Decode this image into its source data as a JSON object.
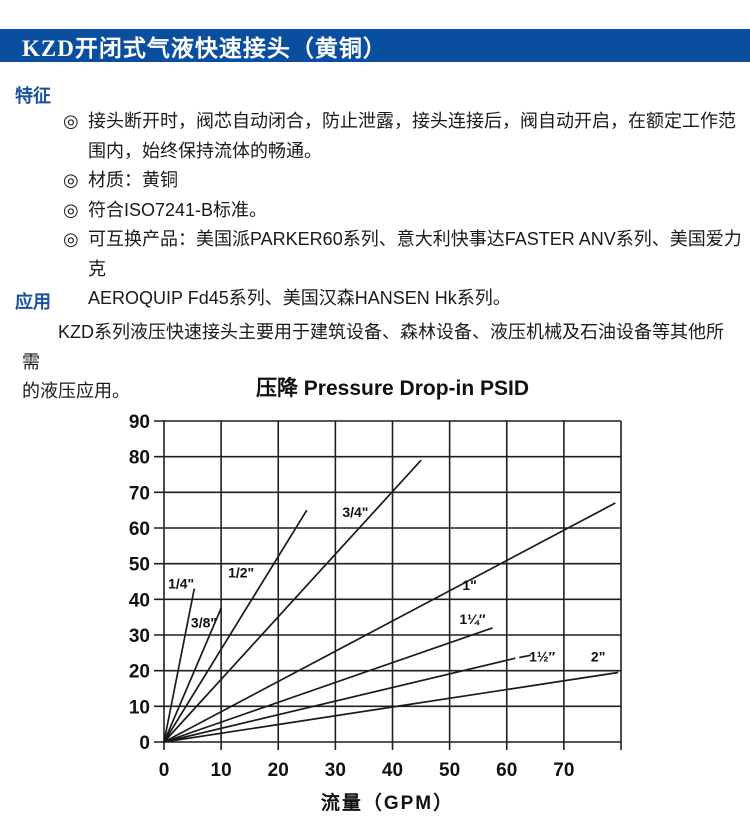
{
  "colors": {
    "banner_bg": "#0a4f9f",
    "banner_fg": "#ffffff",
    "heading_blue": "#1b4fa0",
    "body_text": "#1a1a1a",
    "chart_line": "#1a1a1a"
  },
  "banner": {
    "title": "KZD开闭式气液快速接头（黄铜）"
  },
  "sections": {
    "features": {
      "heading": "特征",
      "bullets": [
        {
          "marker": "◎",
          "text": "接头断开时，阀芯自动闭合，防止泄露，接头连接后，阀自动开启，在额定工作范\n围内，始终保持流体的畅通。"
        },
        {
          "marker": "◎",
          "text": "材质：黄铜"
        },
        {
          "marker": "◎",
          "text": "符合ISO7241-B标准。"
        },
        {
          "marker": "◎",
          "text": "可互换产品：美国派PARKER60系列、意大利快事达FASTER ANV系列、美国爱力克\nAEROQUIP Fd45系列、美国汉森HANSEN Hk系列。"
        }
      ]
    },
    "application": {
      "heading": "应用",
      "text": "KZD系列液压快速接头主要用于建筑设备、森林设备、液压机械及石油设备等其他所需\n的液压应用。"
    }
  },
  "chart_data": {
    "type": "line",
    "title": "压降 Pressure Drop-in PSID",
    "xlabel": "流量（GPM）",
    "ylabel": "",
    "xlim": [
      0,
      80
    ],
    "ylim": [
      0,
      90
    ],
    "x_ticks": [
      0,
      10,
      20,
      30,
      40,
      50,
      60,
      70
    ],
    "y_ticks": [
      0,
      10,
      20,
      30,
      40,
      50,
      60,
      70,
      80,
      90
    ],
    "grid": true,
    "legend_position": "inline-labels",
    "series": [
      {
        "name": "1/4\"",
        "points": [
          [
            0,
            0
          ],
          [
            5.3,
            43
          ]
        ],
        "label": "1/4\"",
        "label_pos": [
          3,
          44.5
        ]
      },
      {
        "name": "3/8\"",
        "points": [
          [
            0,
            0
          ],
          [
            10,
            37.5
          ]
        ],
        "label": "3/8\"",
        "label_pos": [
          7,
          33.5
        ]
      },
      {
        "name": "1/2\"",
        "points": [
          [
            0,
            0
          ],
          [
            25,
            65
          ]
        ],
        "label": "1/2\"",
        "label_pos": [
          13.5,
          47.5
        ]
      },
      {
        "name": "3/4\"",
        "points": [
          [
            0,
            0
          ],
          [
            45,
            79
          ]
        ],
        "label": "3/4\"",
        "label_pos": [
          33.5,
          64.5
        ]
      },
      {
        "name": "1\"",
        "points": [
          [
            0,
            0
          ],
          [
            79,
            67
          ]
        ],
        "label": "1\"",
        "label_pos": [
          53.5,
          44
        ]
      },
      {
        "name": "1 1/4\"",
        "points": [
          [
            0,
            0
          ],
          [
            57.5,
            32
          ]
        ],
        "label": "1¼″",
        "label_pos": [
          54,
          34.5
        ]
      },
      {
        "name": "1 1/2\"",
        "points": [
          [
            0,
            0
          ],
          [
            61.5,
            23.5
          ]
        ],
        "leader": [
          [
            62.2,
            23.7
          ],
          [
            64.2,
            24.3
          ]
        ],
        "label": "1½″",
        "label_pos": [
          66.2,
          24
        ]
      },
      {
        "name": "2\"",
        "points": [
          [
            0,
            0
          ],
          [
            79.5,
            19.5
          ]
        ],
        "label": "2\"",
        "label_pos": [
          76,
          24
        ]
      }
    ]
  }
}
